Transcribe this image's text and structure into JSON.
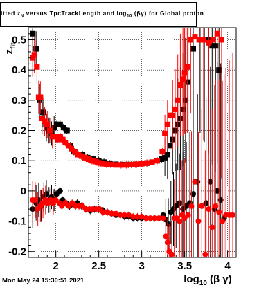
{
  "title": {
    "prefix": "itted  z",
    "sub1": "N",
    "middle": "  versus TpcTrackLength and log",
    "sub2": "10",
    "suffix": " (βγ) for Global proton"
  },
  "footer": "Mon May 24 15:30:51 2021",
  "chart_data": {
    "type": "scatter",
    "title": "itted z_N versus TpcTrackLength and log_10 (βγ) for Global proton",
    "xlabel": "log_10 (β γ)",
    "ylabel": "z_fit",
    "xlim": [
      1.68,
      4.1
    ],
    "ylim": [
      -0.22,
      0.54
    ],
    "xticks": [
      2,
      2.5,
      3,
      3.5,
      4
    ],
    "xtick_labels": [
      "2",
      "2.5",
      "3",
      "3.5",
      "4"
    ],
    "yticks": [
      -0.2,
      -0.1,
      0,
      0.1,
      0.2,
      0.3,
      0.4,
      0.5
    ],
    "ytick_labels": [
      "-0.2",
      "-0.1",
      "0",
      "0.1",
      "0.2",
      "0.3",
      "0.4",
      "0.5"
    ],
    "grid": true,
    "colors": {
      "black": "#000000",
      "red": "#ff0000"
    },
    "series": [
      {
        "color": "#000000",
        "marker": "square",
        "points": [
          [
            1.73,
            0.52
          ],
          [
            1.77,
            0.47
          ],
          [
            1.81,
            0.3
          ],
          [
            1.85,
            0.26
          ],
          [
            1.89,
            0.21
          ],
          [
            1.92,
            0.2
          ],
          [
            1.95,
            0.19
          ],
          [
            1.98,
            0.21
          ],
          [
            2.01,
            0.22
          ],
          [
            2.05,
            0.22
          ],
          [
            2.09,
            0.21
          ],
          [
            2.13,
            0.2
          ],
          [
            2.17,
            0.15
          ],
          [
            2.21,
            0.13
          ],
          [
            2.26,
            0.12
          ],
          [
            2.31,
            0.12
          ],
          [
            2.37,
            0.11
          ],
          [
            2.43,
            0.105
          ],
          [
            2.5,
            0.1
          ],
          [
            2.56,
            0.095
          ],
          [
            2.63,
            0.09
          ],
          [
            2.7,
            0.088
          ],
          [
            2.78,
            0.087
          ],
          [
            2.85,
            0.087
          ],
          [
            2.93,
            0.088
          ],
          [
            3.0,
            0.09
          ],
          [
            3.06,
            0.092
          ],
          [
            3.12,
            0.095
          ],
          [
            3.18,
            0.1
          ],
          [
            3.23,
            0.105
          ],
          [
            3.27,
            0.11
          ],
          [
            3.3,
            0.12
          ],
          [
            3.33,
            0.15
          ],
          [
            3.36,
            0.17
          ],
          [
            3.39,
            0.2
          ],
          [
            3.42,
            0.22
          ],
          [
            3.45,
            0.24
          ],
          [
            3.48,
            0.27
          ],
          [
            3.51,
            0.3
          ],
          [
            3.54,
            0.36
          ],
          [
            3.6,
            0.47
          ],
          [
            3.68,
            0.5
          ],
          [
            3.73,
            0.5
          ],
          [
            3.78,
            0.5
          ],
          [
            3.82,
            0.48
          ],
          [
            3.86,
            0.48
          ],
          [
            3.9,
            0.4
          ]
        ]
      },
      {
        "color": "#ff0000",
        "marker": "square",
        "points": [
          [
            1.73,
            0.44
          ],
          [
            1.75,
            0.45
          ],
          [
            1.78,
            0.41
          ],
          [
            1.8,
            0.31
          ],
          [
            1.82,
            0.31
          ],
          [
            1.84,
            0.24
          ],
          [
            1.87,
            0.23
          ],
          [
            1.9,
            0.22
          ],
          [
            1.93,
            0.2
          ],
          [
            1.96,
            0.18
          ],
          [
            1.99,
            0.18
          ],
          [
            2.02,
            0.17
          ],
          [
            2.05,
            0.18
          ],
          [
            2.08,
            0.17
          ],
          [
            2.11,
            0.16
          ],
          [
            2.15,
            0.15
          ],
          [
            2.18,
            0.14
          ],
          [
            2.22,
            0.13
          ],
          [
            2.26,
            0.12
          ],
          [
            2.3,
            0.115
          ],
          [
            2.34,
            0.11
          ],
          [
            2.38,
            0.105
          ],
          [
            2.42,
            0.1
          ],
          [
            2.46,
            0.097
          ],
          [
            2.5,
            0.093
          ],
          [
            2.54,
            0.09
          ],
          [
            2.59,
            0.088
          ],
          [
            2.64,
            0.087
          ],
          [
            2.7,
            0.086
          ],
          [
            2.76,
            0.086
          ],
          [
            2.82,
            0.086
          ],
          [
            2.88,
            0.087
          ],
          [
            2.94,
            0.088
          ],
          [
            3.0,
            0.09
          ],
          [
            3.06,
            0.092
          ],
          [
            3.12,
            0.095
          ],
          [
            3.18,
            0.1
          ],
          [
            3.24,
            0.13
          ],
          [
            3.27,
            0.19
          ],
          [
            3.3,
            0.22
          ],
          [
            3.33,
            0.25
          ],
          [
            3.36,
            0.25
          ],
          [
            3.39,
            0.27
          ],
          [
            3.42,
            0.3
          ],
          [
            3.45,
            0.35
          ],
          [
            3.48,
            0.37
          ],
          [
            3.5,
            0.39
          ],
          [
            3.53,
            0.41
          ],
          [
            3.57,
            0.5
          ],
          [
            3.62,
            0.51
          ],
          [
            3.67,
            0.5
          ],
          [
            3.72,
            0.5
          ],
          [
            3.78,
            0.49
          ],
          [
            3.83,
            0.5
          ],
          [
            3.88,
            0.52
          ],
          [
            3.93,
            0.5
          ]
        ]
      },
      {
        "color": "#000000",
        "marker": "circle",
        "points": [
          [
            1.73,
            -0.06
          ],
          [
            1.77,
            -0.04
          ],
          [
            1.8,
            -0.03
          ],
          [
            1.83,
            -0.05
          ],
          [
            1.86,
            -0.02
          ],
          [
            1.89,
            -0.01
          ],
          [
            1.92,
            -0.03
          ],
          [
            1.95,
            -0.02
          ],
          [
            1.98,
            -0.03
          ],
          [
            2.01,
            -0.01
          ],
          [
            2.05,
            0.0
          ],
          [
            2.08,
            -0.03
          ],
          [
            2.12,
            -0.04
          ],
          [
            2.16,
            -0.05
          ],
          [
            2.2,
            -0.045
          ],
          [
            2.25,
            -0.04
          ],
          [
            2.3,
            -0.05
          ],
          [
            2.35,
            -0.06
          ],
          [
            2.4,
            -0.065
          ],
          [
            2.45,
            -0.06
          ],
          [
            2.5,
            -0.06
          ],
          [
            2.55,
            -0.065
          ],
          [
            2.6,
            -0.07
          ],
          [
            2.65,
            -0.075
          ],
          [
            2.7,
            -0.08
          ],
          [
            2.75,
            -0.08
          ],
          [
            2.8,
            -0.085
          ],
          [
            2.85,
            -0.085
          ],
          [
            2.9,
            -0.09
          ],
          [
            2.95,
            -0.09
          ],
          [
            3.0,
            -0.09
          ],
          [
            3.05,
            -0.09
          ],
          [
            3.1,
            -0.09
          ],
          [
            3.15,
            -0.09
          ],
          [
            3.2,
            -0.09
          ],
          [
            3.25,
            -0.08
          ],
          [
            3.28,
            -0.095
          ],
          [
            3.31,
            -0.11
          ],
          [
            3.34,
            -0.07
          ],
          [
            3.37,
            -0.06
          ],
          [
            3.4,
            -0.05
          ],
          [
            3.44,
            -0.04
          ],
          [
            3.48,
            -0.06
          ],
          [
            3.52,
            -0.05
          ],
          [
            3.56,
            -0.04
          ],
          [
            3.6,
            -0.01
          ],
          [
            3.65,
            0.03
          ],
          [
            3.7,
            -0.05
          ],
          [
            3.75,
            -0.04
          ],
          [
            3.8,
            0.03
          ],
          [
            3.85,
            -0.06
          ],
          [
            3.88,
            0.0
          ],
          [
            3.92,
            -0.03
          ],
          [
            3.96,
            -0.09
          ]
        ]
      },
      {
        "color": "#ff0000",
        "marker": "circle",
        "points": [
          [
            1.73,
            -0.03
          ],
          [
            1.76,
            -0.03
          ],
          [
            1.79,
            -0.06
          ],
          [
            1.82,
            -0.05
          ],
          [
            1.85,
            -0.04
          ],
          [
            1.88,
            -0.03
          ],
          [
            1.91,
            -0.04
          ],
          [
            1.94,
            -0.03
          ],
          [
            1.97,
            -0.04
          ],
          [
            2.0,
            -0.03
          ],
          [
            2.04,
            -0.04
          ],
          [
            2.07,
            -0.05
          ],
          [
            2.11,
            -0.04
          ],
          [
            2.15,
            -0.05
          ],
          [
            2.19,
            -0.04
          ],
          [
            2.23,
            -0.05
          ],
          [
            2.27,
            -0.05
          ],
          [
            2.31,
            -0.05
          ],
          [
            2.35,
            -0.06
          ],
          [
            2.39,
            -0.06
          ],
          [
            2.43,
            -0.06
          ],
          [
            2.47,
            -0.06
          ],
          [
            2.51,
            -0.06
          ],
          [
            2.55,
            -0.07
          ],
          [
            2.6,
            -0.07
          ],
          [
            2.65,
            -0.075
          ],
          [
            2.7,
            -0.075
          ],
          [
            2.75,
            -0.08
          ],
          [
            2.8,
            -0.08
          ],
          [
            2.85,
            -0.08
          ],
          [
            2.9,
            -0.085
          ],
          [
            2.95,
            -0.085
          ],
          [
            3.0,
            -0.085
          ],
          [
            3.05,
            -0.09
          ],
          [
            3.1,
            -0.09
          ],
          [
            3.15,
            -0.09
          ],
          [
            3.2,
            -0.09
          ],
          [
            3.25,
            -0.09
          ],
          [
            3.28,
            -0.15
          ],
          [
            3.3,
            -0.17
          ],
          [
            3.32,
            -0.2
          ],
          [
            3.35,
            -0.21
          ],
          [
            3.38,
            -0.09
          ],
          [
            3.41,
            -0.09
          ],
          [
            3.44,
            -0.1
          ],
          [
            3.47,
            -0.08
          ],
          [
            3.5,
            -0.09
          ],
          [
            3.54,
            -0.08
          ],
          [
            3.58,
            -0.05
          ],
          [
            3.62,
            0.03
          ],
          [
            3.66,
            -0.1
          ],
          [
            3.7,
            -0.05
          ],
          [
            3.74,
            -0.21
          ],
          [
            3.78,
            -0.06
          ],
          [
            3.82,
            -0.12
          ],
          [
            3.86,
            -0.05
          ],
          [
            3.9,
            -0.07
          ],
          [
            3.94,
            -0.1
          ],
          [
            3.98,
            -0.08
          ],
          [
            4.02,
            -0.08
          ],
          [
            4.06,
            -0.08
          ]
        ]
      }
    ]
  }
}
